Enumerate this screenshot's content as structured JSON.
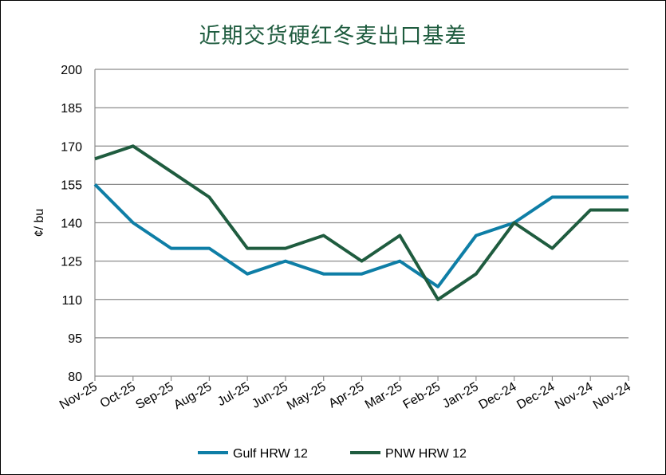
{
  "chart_data": {
    "type": "line",
    "title": "近期交货硬红冬麦出口基差",
    "ylabel": "¢/ bu",
    "xlabel": "",
    "ylim": [
      80,
      200
    ],
    "yticks": [
      80,
      95,
      110,
      125,
      140,
      155,
      170,
      185,
      200
    ],
    "grid": true,
    "legend_position": "bottom",
    "categories": [
      "Nov-25",
      "Oct-25",
      "Sep-25",
      "Aug-25",
      "Jul-25",
      "Jun-25",
      "May-25",
      "Apr-25",
      "Mar-25",
      "Feb-25",
      "Jan-25",
      "Dec-24",
      "Dec-24",
      "Nov-24",
      "Nov-24"
    ],
    "series": [
      {
        "name": "Gulf HRW 12",
        "color": "#0e7ea6",
        "values": [
          155,
          140,
          130,
          130,
          120,
          125,
          120,
          120,
          125,
          115,
          135,
          140,
          150,
          150,
          150
        ]
      },
      {
        "name": "PNW HRW 12",
        "color": "#1f5c3f",
        "values": [
          165,
          170,
          160,
          150,
          130,
          130,
          135,
          125,
          135,
          110,
          120,
          140,
          130,
          145,
          145
        ]
      }
    ]
  }
}
